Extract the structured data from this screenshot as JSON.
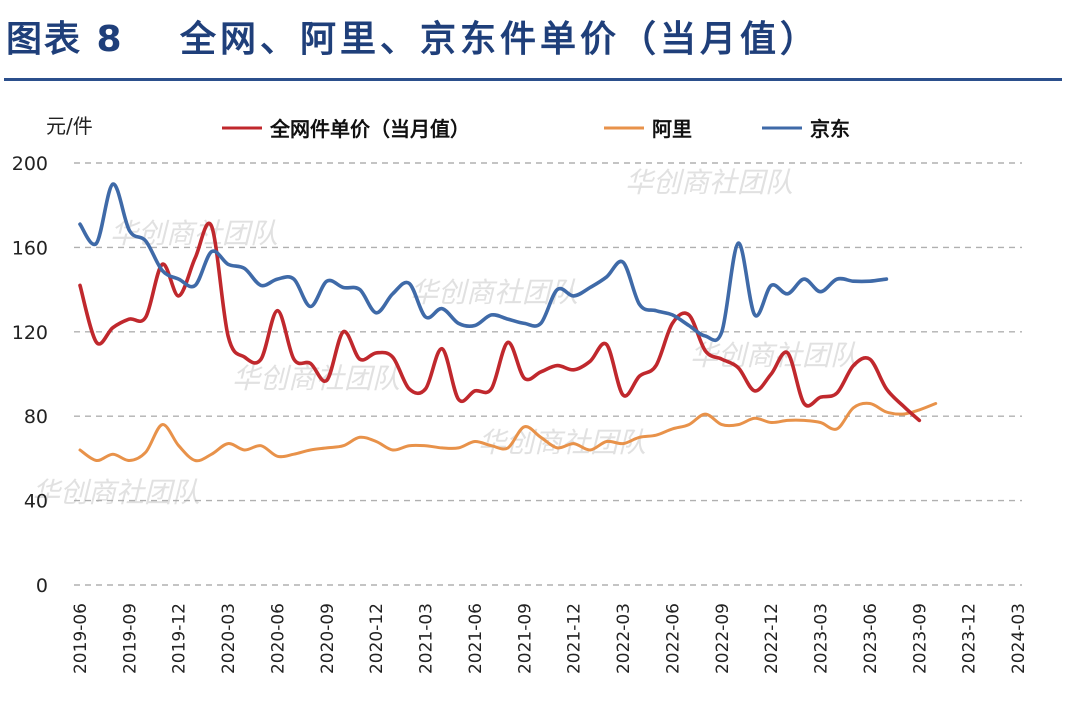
{
  "figure": {
    "label": "图表 8",
    "title": "全网、阿里、京东件单价（当月值）"
  },
  "watermark": "华创商社团队",
  "colors": {
    "all_network": "#c0282d",
    "ali": "#e8924a",
    "jd": "#3f6aa8",
    "grid": "#b0b0b0",
    "title": "#1f3f7a"
  },
  "chart_data": {
    "type": "line",
    "title": "全网、阿里、京东件单价（当月值）",
    "ylabel": "元/件",
    "xlabel": "",
    "ylim": [
      0,
      200
    ],
    "yticks": [
      0,
      40,
      80,
      120,
      160,
      200
    ],
    "grid": true,
    "legend_position": "top",
    "xtick_labels": [
      "2019-06",
      "2019-09",
      "2019-12",
      "2020-03",
      "2020-06",
      "2020-09",
      "2020-12",
      "2021-03",
      "2021-06",
      "2021-09",
      "2021-12",
      "2022-03",
      "2022-06",
      "2022-09",
      "2022-12",
      "2023-03",
      "2023-06",
      "2023-09",
      "2023-12",
      "2024-03"
    ],
    "x": [
      "2019-06",
      "2019-07",
      "2019-08",
      "2019-09",
      "2019-10",
      "2019-11",
      "2019-12",
      "2020-01",
      "2020-02",
      "2020-03",
      "2020-04",
      "2020-05",
      "2020-06",
      "2020-07",
      "2020-08",
      "2020-09",
      "2020-10",
      "2020-11",
      "2020-12",
      "2021-01",
      "2021-02",
      "2021-03",
      "2021-04",
      "2021-05",
      "2021-06",
      "2021-07",
      "2021-08",
      "2021-09",
      "2021-10",
      "2021-11",
      "2021-12",
      "2022-01",
      "2022-02",
      "2022-03",
      "2022-04",
      "2022-05",
      "2022-06",
      "2022-07",
      "2022-08",
      "2022-09",
      "2022-10",
      "2022-11",
      "2022-12",
      "2023-01",
      "2023-02",
      "2023-03",
      "2023-04",
      "2023-05",
      "2023-06",
      "2023-07",
      "2023-08",
      "2023-09",
      "2023-10",
      "2023-11",
      "2023-12",
      "2024-01",
      "2024-02",
      "2024-03"
    ],
    "series": [
      {
        "name": "全网件单价（当月值）",
        "color": "#c0282d",
        "values": [
          142,
          115,
          122,
          126,
          127,
          152,
          137,
          155,
          170,
          118,
          108,
          107,
          130,
          107,
          105,
          97,
          120,
          107,
          110,
          108,
          93,
          93,
          112,
          88,
          92,
          93,
          115,
          98,
          101,
          104,
          102,
          106,
          114,
          90,
          99,
          104,
          124,
          128,
          111,
          107,
          103,
          92,
          100,
          110,
          86,
          89,
          91,
          104,
          107,
          93,
          85,
          78,
          null,
          null,
          null,
          null,
          null,
          null
        ]
      },
      {
        "name": "阿里",
        "color": "#e8924a",
        "values": [
          64,
          59,
          62,
          59,
          63,
          76,
          66,
          59,
          62,
          67,
          64,
          66,
          61,
          62,
          64,
          65,
          66,
          70,
          68,
          64,
          66,
          66,
          65,
          65,
          68,
          66,
          65,
          75,
          70,
          65,
          67,
          64,
          68,
          67,
          70,
          71,
          74,
          76,
          81,
          76,
          76,
          79,
          77,
          78,
          78,
          77,
          74,
          84,
          86,
          82,
          81,
          83,
          86,
          null,
          null,
          null,
          null,
          null
        ]
      },
      {
        "name": "京东",
        "color": "#3f6aa8",
        "values": [
          171,
          162,
          190,
          168,
          163,
          149,
          145,
          142,
          158,
          152,
          150,
          142,
          145,
          145,
          132,
          144,
          141,
          140,
          129,
          138,
          143,
          127,
          131,
          124,
          123,
          128,
          126,
          124,
          124,
          140,
          137,
          141,
          146,
          153,
          133,
          130,
          128,
          123,
          118,
          120,
          162,
          128,
          142,
          138,
          145,
          139,
          145,
          144,
          144,
          145,
          null,
          null,
          null,
          null,
          null,
          null,
          null,
          null
        ]
      }
    ]
  }
}
